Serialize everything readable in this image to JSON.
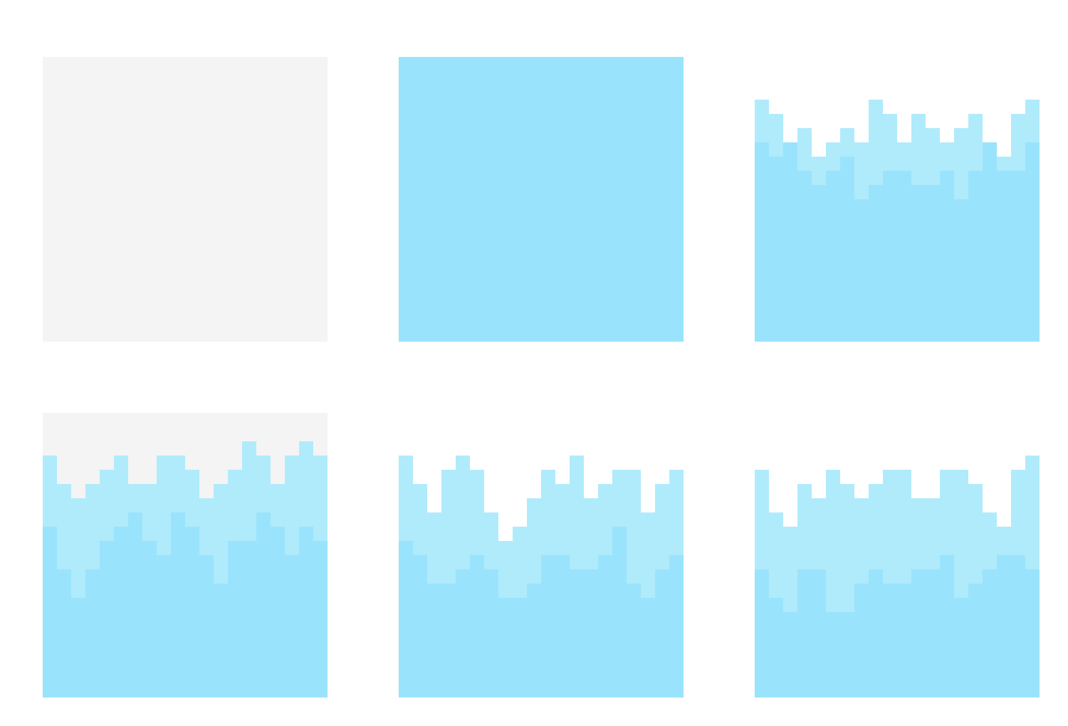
{
  "palette": {
    "background": "#ffffff",
    "empty": "#f4f4f4",
    "water_surface": "#b0ebfb",
    "water_deep": "#9ae3fc"
  },
  "tiles": [
    {
      "id": "tile-1",
      "name": "empty-tile",
      "base": "empty",
      "surface_profile": null,
      "deep_profile": null
    },
    {
      "id": "tile-2",
      "name": "full-water-tile",
      "base": "water_deep",
      "surface_profile": null,
      "deep_profile": null
    },
    {
      "id": "tile-3",
      "name": "water-tile-variant-a",
      "base": "transparent",
      "surface_profile": [
        3,
        4,
        6,
        5,
        7,
        6,
        5,
        6,
        3,
        4,
        6,
        4,
        5,
        6,
        5,
        4,
        6,
        7,
        4,
        3
      ],
      "deep_profile": [
        6,
        7,
        6,
        8,
        9,
        8,
        7,
        10,
        9,
        8,
        8,
        9,
        9,
        8,
        10,
        8,
        6,
        8,
        8,
        6
      ]
    },
    {
      "id": "tile-4",
      "name": "water-tile-variant-b",
      "base": "empty",
      "surface_profile": [
        3,
        5,
        6,
        5,
        4,
        3,
        5,
        5,
        3,
        3,
        4,
        6,
        5,
        4,
        2,
        3,
        5,
        3,
        2,
        3
      ],
      "deep_profile": [
        8,
        11,
        13,
        11,
        9,
        8,
        7,
        9,
        10,
        7,
        8,
        10,
        12,
        9,
        9,
        7,
        8,
        10,
        8,
        9
      ]
    },
    {
      "id": "tile-5",
      "name": "water-tile-variant-c",
      "base": "transparent",
      "surface_profile": [
        3,
        5,
        7,
        4,
        3,
        4,
        7,
        9,
        8,
        6,
        4,
        5,
        3,
        6,
        5,
        4,
        4,
        7,
        5,
        4
      ],
      "deep_profile": [
        9,
        10,
        12,
        12,
        11,
        10,
        11,
        13,
        13,
        12,
        10,
        10,
        11,
        11,
        10,
        8,
        12,
        13,
        11,
        10
      ]
    },
    {
      "id": "tile-6",
      "name": "water-tile-variant-d",
      "base": "transparent",
      "surface_profile": [
        4,
        7,
        8,
        5,
        6,
        4,
        5,
        6,
        5,
        4,
        4,
        6,
        6,
        4,
        4,
        5,
        7,
        8,
        4,
        3
      ],
      "deep_profile": [
        11,
        13,
        14,
        11,
        11,
        14,
        14,
        12,
        11,
        12,
        12,
        11,
        11,
        10,
        13,
        12,
        11,
        10,
        10,
        11
      ]
    }
  ]
}
